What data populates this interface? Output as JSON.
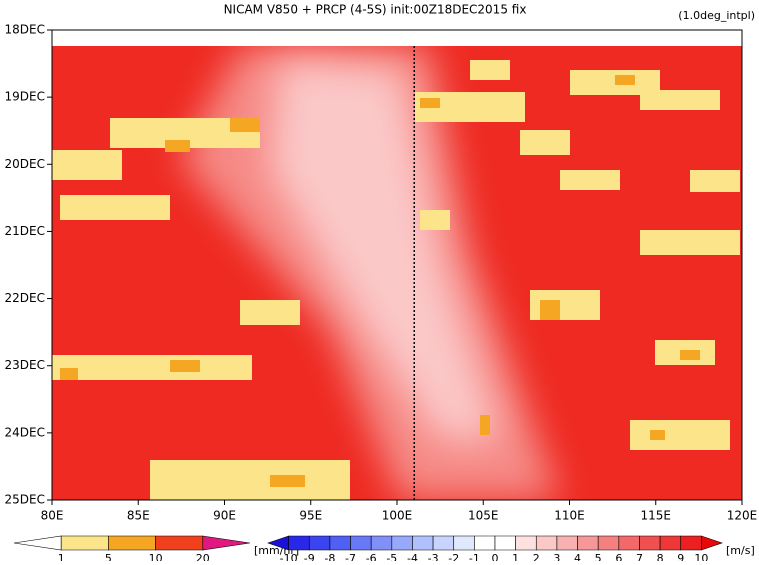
{
  "chart_data": {
    "type": "hovmoller",
    "title": "NICAM  V850 + PRCP (4-5S) init:00Z18DEC2015 fix",
    "subtitle": "(1.0deg_intpl)",
    "xlim": [
      80,
      120
    ],
    "xticks": [
      {
        "value": 80,
        "label": "80E"
      },
      {
        "value": 85,
        "label": "85E"
      },
      {
        "value": 90,
        "label": "90E"
      },
      {
        "value": 95,
        "label": "95E"
      },
      {
        "value": 100,
        "label": "100E"
      },
      {
        "value": 105,
        "label": "105E"
      },
      {
        "value": 110,
        "label": "110E"
      },
      {
        "value": 115,
        "label": "115E"
      },
      {
        "value": 120,
        "label": "120E"
      }
    ],
    "ylim": [
      18,
      25
    ],
    "yticks": [
      {
        "value": 18,
        "label": "18DEC"
      },
      {
        "value": 19,
        "label": "19DEC"
      },
      {
        "value": 20,
        "label": "20DEC"
      },
      {
        "value": 21,
        "label": "21DEC"
      },
      {
        "value": 22,
        "label": "22DEC"
      },
      {
        "value": 23,
        "label": "23DEC"
      },
      {
        "value": 24,
        "label": "24DEC"
      },
      {
        "value": 25,
        "label": "25DEC"
      }
    ],
    "reference_line_x": 101,
    "colorbars": [
      {
        "unit": "[mm/hr]",
        "levels": [
          1,
          5,
          10,
          20
        ],
        "colors": [
          "#ffffff",
          "#fbe48a",
          "#f5a623",
          "#f0401e",
          "#e01880"
        ]
      },
      {
        "unit": "[m/s]",
        "levels": [
          -10,
          -9,
          -8,
          -7,
          -6,
          -5,
          -4,
          -3,
          -2,
          -1,
          0,
          1,
          2,
          3,
          4,
          5,
          6,
          7,
          8,
          9,
          10
        ],
        "colors": [
          "#1a10d8",
          "#2a28e8",
          "#3c44f0",
          "#5060f4",
          "#6878f6",
          "#8090f8",
          "#98a8fa",
          "#b0c0fc",
          "#c8d4fd",
          "#e0e8fe",
          "#ffffff",
          "#ffffff",
          "#fde0e0",
          "#fbc8c8",
          "#f9b0b0",
          "#f79898",
          "#f58080",
          "#f36868",
          "#f05050",
          "#ee3838",
          "#ec2020",
          "#e80808"
        ]
      }
    ]
  }
}
